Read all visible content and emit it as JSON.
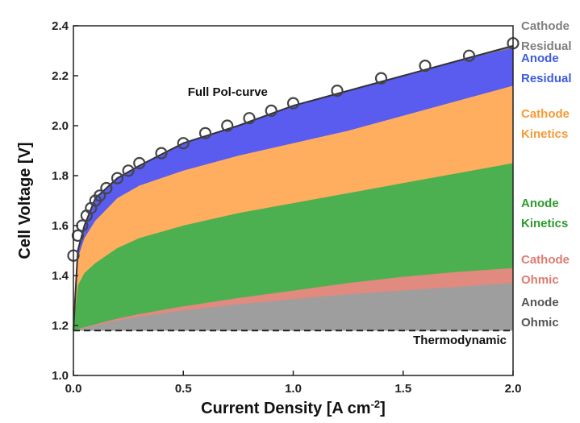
{
  "chart_data": {
    "type": "area",
    "xlabel": "Current Density [A cm",
    "xlabel_sup": "-2",
    "xlabel_end": "]",
    "ylabel": "Cell Voltage [V]",
    "xlim": [
      0.0,
      2.0
    ],
    "ylim": [
      1.0,
      2.4
    ],
    "x_ticks": [
      "0.0",
      "0.5",
      "1.0",
      "1.5",
      "2.0"
    ],
    "y_ticks": [
      "1.0",
      "1.2",
      "1.4",
      "1.6",
      "1.8",
      "2.0",
      "2.2",
      "2.4"
    ],
    "thermodynamic": 1.18,
    "grid": false,
    "legend_position": "right",
    "x": [
      0.0,
      0.02,
      0.05,
      0.1,
      0.2,
      0.3,
      0.5,
      0.75,
      1.0,
      1.25,
      1.5,
      1.75,
      2.0
    ],
    "series": [
      {
        "name": "Anode Ohmic",
        "color": "#9e9e9e",
        "values": [
          1.18,
          1.185,
          1.19,
          1.2,
          1.22,
          1.235,
          1.26,
          1.285,
          1.305,
          1.325,
          1.34,
          1.355,
          1.37
        ]
      },
      {
        "name": "Cathode Ohmic",
        "color": "#e08a80",
        "values": [
          1.18,
          1.186,
          1.193,
          1.205,
          1.228,
          1.246,
          1.277,
          1.31,
          1.34,
          1.37,
          1.395,
          1.415,
          1.43
        ]
      },
      {
        "name": "Anode Kinetics",
        "color": "#4caf50",
        "values": [
          1.18,
          1.36,
          1.41,
          1.45,
          1.51,
          1.55,
          1.6,
          1.65,
          1.69,
          1.73,
          1.77,
          1.81,
          1.85
        ]
      },
      {
        "name": "Cathode Kinetics",
        "color": "#ffad5f",
        "values": [
          1.18,
          1.47,
          1.55,
          1.62,
          1.71,
          1.76,
          1.82,
          1.88,
          1.93,
          1.98,
          2.04,
          2.1,
          2.16
        ]
      },
      {
        "name": "Anode Residual",
        "color": "#5a5cf0",
        "values": [
          1.18,
          1.5,
          1.6,
          1.71,
          1.79,
          1.84,
          1.93,
          2.0,
          2.08,
          2.14,
          2.2,
          2.26,
          2.31
        ]
      },
      {
        "name": "Cathode Residual",
        "color": "#7f7f7f",
        "values": [
          1.18,
          1.5,
          1.6,
          1.71,
          1.79,
          1.84,
          1.93,
          2.0,
          2.08,
          2.14,
          2.2,
          2.26,
          2.32
        ]
      }
    ],
    "markers": {
      "name": "Full Pol-curve",
      "x": [
        0.0,
        0.02,
        0.04,
        0.06,
        0.08,
        0.1,
        0.12,
        0.15,
        0.2,
        0.25,
        0.3,
        0.4,
        0.5,
        0.6,
        0.7,
        0.8,
        0.9,
        1.0,
        1.2,
        1.4,
        1.6,
        1.8,
        2.0
      ],
      "y": [
        1.48,
        1.56,
        1.6,
        1.64,
        1.67,
        1.7,
        1.72,
        1.75,
        1.79,
        1.82,
        1.85,
        1.89,
        1.93,
        1.97,
        2.0,
        2.03,
        2.06,
        2.09,
        2.14,
        2.19,
        2.24,
        2.28,
        2.33
      ]
    },
    "legend": [
      {
        "lines": [
          "Cathode",
          "Residual"
        ],
        "color": "#7f7f7f"
      },
      {
        "lines": [
          "Anode",
          "Residual"
        ],
        "color": "#3d5ce0"
      },
      {
        "lines": [
          "Cathode",
          "Kinetics"
        ],
        "color": "#f59a35"
      },
      {
        "lines": [
          "Anode",
          "Kinetics"
        ],
        "color": "#2e9a2e"
      },
      {
        "lines": [
          "Cathode",
          "Ohmic"
        ],
        "color": "#e07a70"
      },
      {
        "lines": [
          "Anode",
          "Ohmic"
        ],
        "color": "#555555"
      }
    ],
    "annotations": {
      "full_pol_curve": "Full Pol-curve",
      "thermodynamic": "Thermodynamic"
    }
  }
}
